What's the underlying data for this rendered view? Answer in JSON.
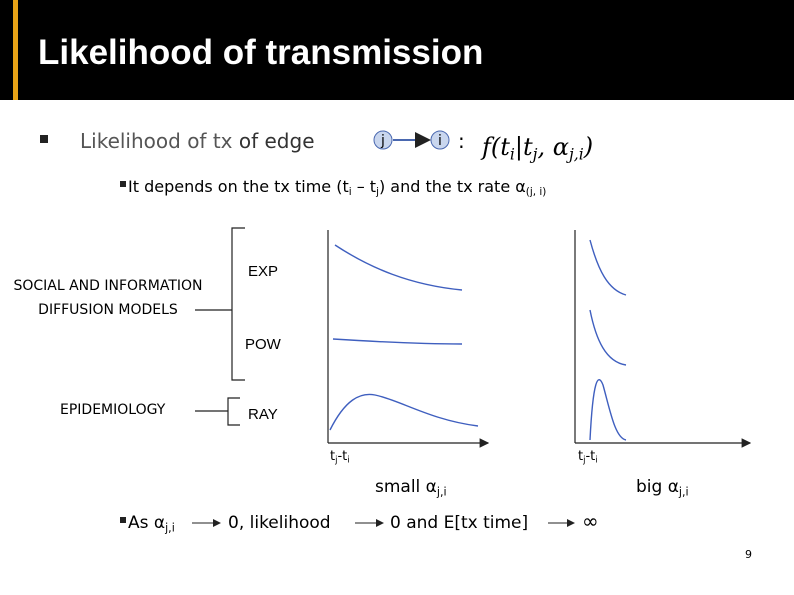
{
  "header": {
    "title": "Likelihood of transmission"
  },
  "bullet_1": {
    "text_a": "Likelihood of tx",
    "text_b": "of edge",
    "node_from": "j",
    "node_to": "i",
    "colon": ":",
    "formula": [
      "f(t",
      "i",
      "|t",
      "j",
      ", α",
      "j,i",
      ")"
    ]
  },
  "bullet_1_sub": [
    "It depends on the tx time (t",
    "i",
    " – t",
    "j",
    ") and the tx rate α",
    "(j, i)"
  ],
  "models": {
    "social_line_1": "SOCIAL AND INFORMATION",
    "social_line_2": "DIFFUSION MODELS",
    "epidemiology": "EPIDEMIOLOGY",
    "exp": "EXP",
    "pow": "POW",
    "ray": "RAY"
  },
  "plots": {
    "x_label_1": [
      "t",
      "j",
      "-t",
      "i"
    ],
    "x_label_2": [
      "t",
      "j",
      "-t",
      "i"
    ],
    "small": [
      "small α",
      "j,i"
    ],
    "big": [
      "big α",
      "j,i"
    ]
  },
  "bullet_2": {
    "as": [
      "As α",
      "j,i"
    ],
    "step_1": "0, likelihood",
    "step_2": "0 and E[tx time]",
    "step_3": "∞"
  },
  "page_number": "9"
}
